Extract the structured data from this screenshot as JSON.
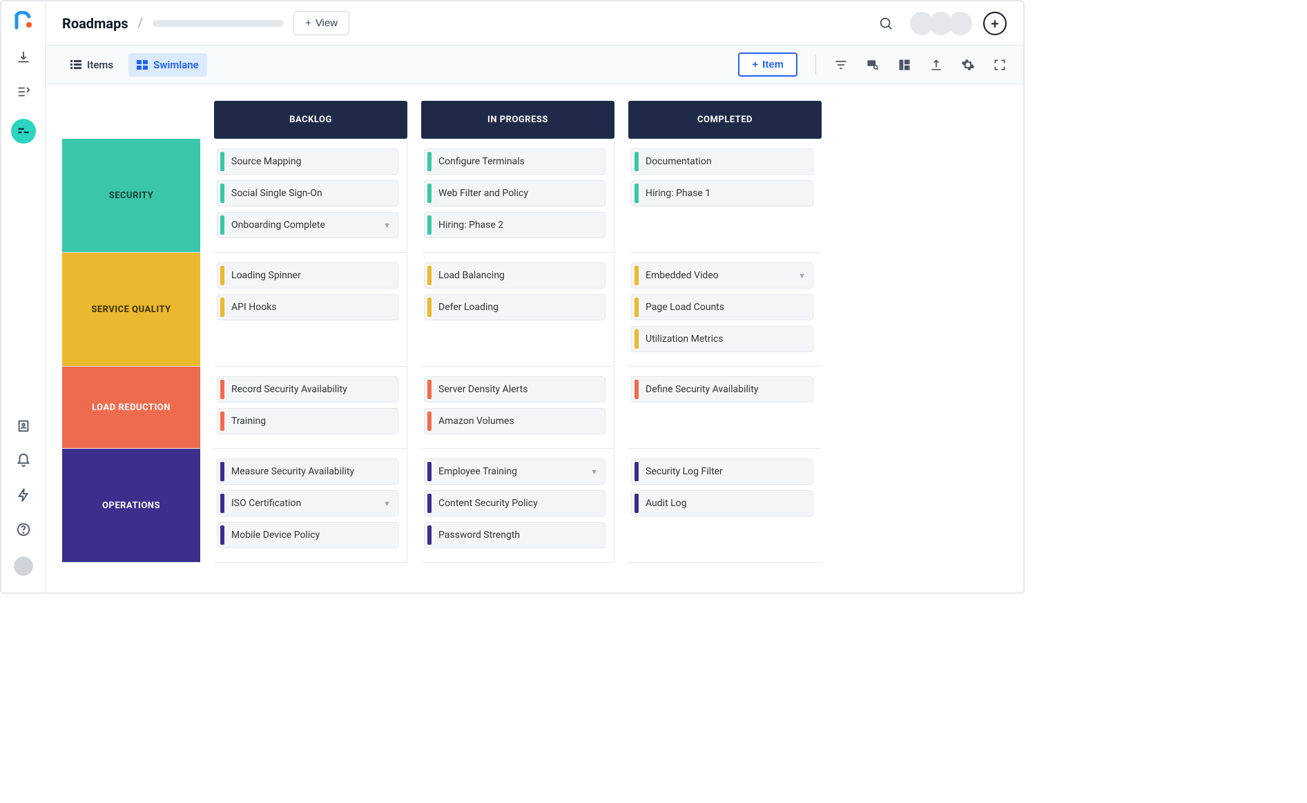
{
  "header": {
    "title": "Roadmaps",
    "view_button": "View"
  },
  "toolbar": {
    "items_tab": "Items",
    "swimlane_tab": "Swimlane",
    "add_item": "Item"
  },
  "columns": [
    "BACKLOG",
    "IN PROGRESS",
    "COMPLETED"
  ],
  "colors": {
    "column_header_bg": "#1e2a47",
    "card_bg": "#f4f5f7"
  },
  "lanes": [
    {
      "id": "security",
      "label": "SECURITY",
      "color": "#3cc6a9",
      "text_color": "#163c34",
      "cells": [
        [
          {
            "label": "Source Mapping"
          },
          {
            "label": "Social Single Sign-On"
          },
          {
            "label": "Onboarding Complete",
            "expandable": true
          }
        ],
        [
          {
            "label": "Configure Terminals"
          },
          {
            "label": "Web Filter and Policy"
          },
          {
            "label": "Hiring: Phase 2"
          }
        ],
        [
          {
            "label": "Documentation"
          },
          {
            "label": "Hiring: Phase 1"
          }
        ]
      ]
    },
    {
      "id": "service-quality",
      "label": "SERVICE QUALITY",
      "color": "#eab92d",
      "text_color": "#3a2d07",
      "cells": [
        [
          {
            "label": "Loading Spinner"
          },
          {
            "label": "API Hooks"
          }
        ],
        [
          {
            "label": "Load Balancing"
          },
          {
            "label": "Defer Loading"
          }
        ],
        [
          {
            "label": "Embedded Video",
            "expandable": true
          },
          {
            "label": "Page Load Counts"
          },
          {
            "label": "Utilization Metrics"
          }
        ]
      ]
    },
    {
      "id": "load-reduction",
      "label": "LOAD REDUCTION",
      "color": "#ee6b4d",
      "text_color": "#ffffff",
      "cells": [
        [
          {
            "label": "Record Security Availability"
          },
          {
            "label": "Training"
          }
        ],
        [
          {
            "label": "Server Density Alerts"
          },
          {
            "label": "Amazon Volumes"
          }
        ],
        [
          {
            "label": "Define Security Availability"
          }
        ]
      ]
    },
    {
      "id": "operations",
      "label": "OPERATIONS",
      "color": "#3b2e8c",
      "text_color": "#ffffff",
      "cells": [
        [
          {
            "label": "Measure Security Availability"
          },
          {
            "label": "ISO Certification",
            "expandable": true
          },
          {
            "label": "Mobile Device Policy"
          }
        ],
        [
          {
            "label": "Employee Training",
            "expandable": true
          },
          {
            "label": "Content Security Policy"
          },
          {
            "label": "Password Strength"
          }
        ],
        [
          {
            "label": "Security Log Filter"
          },
          {
            "label": "Audit Log"
          }
        ]
      ]
    }
  ]
}
